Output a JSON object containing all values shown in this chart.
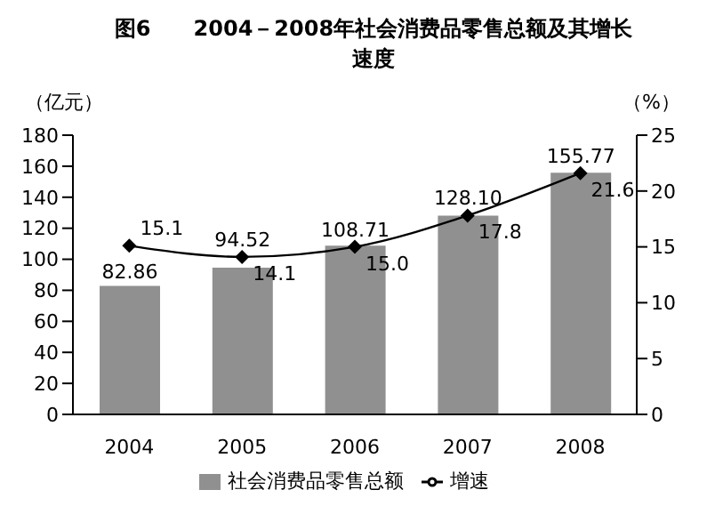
{
  "chart_data": {
    "type": "bar",
    "title": "图6　　2004－2008年社会消费品零售总额及其增长速度",
    "ylabel": "（亿元）",
    "y2label": "（%）",
    "categories": [
      "2004",
      "2005",
      "2006",
      "2007",
      "2008"
    ],
    "series": [
      {
        "name": "社会消费品零售总额",
        "color": "#909090",
        "values": [
          82.86,
          94.52,
          108.71,
          128.1,
          155.77
        ],
        "value_labels": [
          "82.86",
          "94.52",
          "108.71",
          "128.10",
          "155.77"
        ]
      },
      {
        "name": "增速",
        "type": "line",
        "axis": "y2",
        "color": "#000000",
        "marker": "diamond",
        "values": [
          15.1,
          14.1,
          15.0,
          17.8,
          21.6
        ],
        "value_labels": [
          "15.1",
          "14.1",
          "15.0",
          "17.8",
          "21.6"
        ]
      }
    ],
    "ylim": [
      0,
      180
    ],
    "yticks": [
      0,
      20,
      40,
      60,
      80,
      100,
      120,
      140,
      160,
      180
    ],
    "y2lim": [
      0,
      25
    ],
    "y2ticks": [
      0,
      5,
      10,
      15,
      20,
      25
    ],
    "grid": false,
    "legend": "bottom"
  }
}
